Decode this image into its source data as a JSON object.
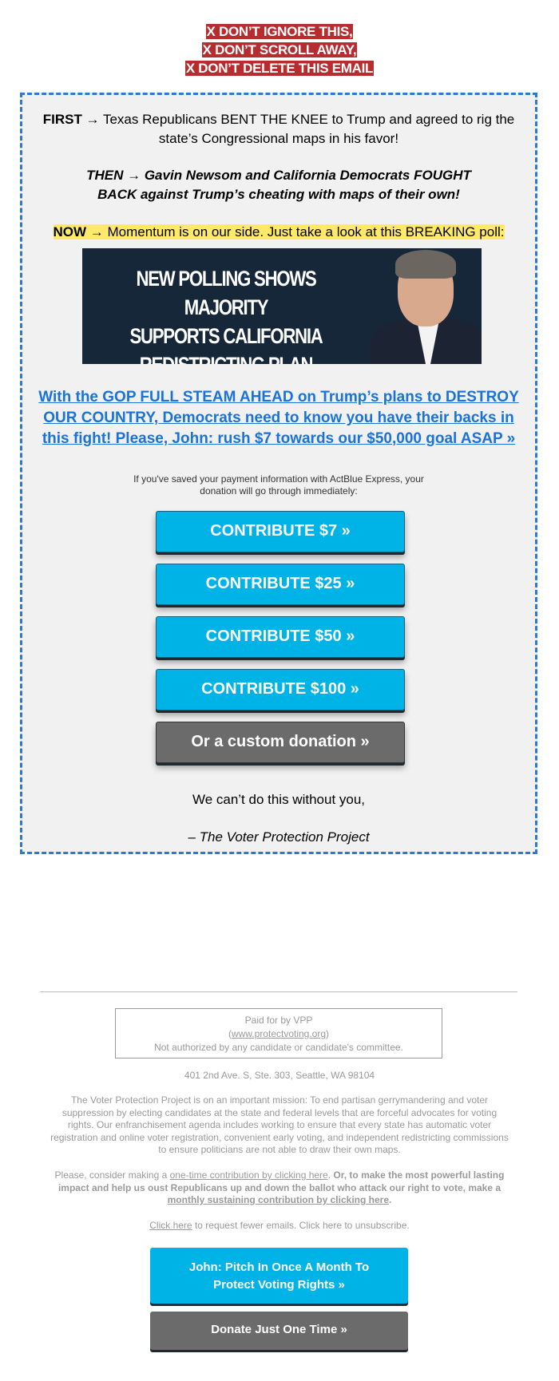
{
  "warning": [
    "X DON’T IGNORE THIS,",
    "X DON’T SCROLL AWAY,",
    "X DON’T DELETE THIS EMAIL"
  ],
  "first": {
    "lead": "FIRST",
    "text": " → Texas Republicans BENT THE KNEE to Trump and agreed to rig the state’s Congressional maps in his favor!"
  },
  "then": {
    "lead": "THEN",
    "text": " → Gavin Newsom and California Democrats FOUGHT BACK against Trump’s cheating with maps of their own!"
  },
  "now": {
    "lead": "NOW",
    "text": " → Momentum is on our side. Just take a look at this BREAKING poll:"
  },
  "banner": {
    "lines": [
      "NEW POLLING SHOWS MAJORITY",
      "SUPPORTS CALIFORNIA",
      "REDISTRICTING PLAN"
    ]
  },
  "ask_link": "With the GOP FULL STEAM AHEAD on Trump’s plans to DESTROY OUR COUNTRY, Democrats need to know you have their backs in this fight! Please, John: rush $7 towards our $50,000 goal ASAP »",
  "express_note": "If you've saved your payment information with ActBlue Express, your donation will go through immediately:",
  "buttons": [
    "CONTRIBUTE $7 »",
    "CONTRIBUTE $25 »",
    "CONTRIBUTE $50 »",
    "CONTRIBUTE $100 »",
    "Or a custom donation »"
  ],
  "closing": "We can’t do this without you,",
  "signature": "– The Voter Protection Project",
  "footer": {
    "paid_for": "Paid for by VPP",
    "site_open": "(",
    "site": "www.protectvoting.org",
    "site_close": ")",
    "not_authorized": "Not authorized by any candidate or candidate's committee.",
    "address": "401 2nd Ave. S, Ste. 303, Seattle, WA 98104",
    "mission": "The Voter Protection Project is on an important mission: To end partisan gerrymandering and voter suppression by electing candidates at the state and federal levels that are forceful advocates for voting rights. Our enfranchisement agenda includes working to ensure that every state has automatic voter registration and online voter registration, convenient early voting, and independent redistricting commissions to ensure politicians are not able to draw their own maps.",
    "please_a": "Please, consider making a ",
    "one_time_link": "one-time contribution by clicking here",
    "please_b": ". ",
    "bold_a": "Or, to make the most powerful lasting impact and help us oust Republicans up and down the ballot who attack our right to vote, make a ",
    "monthly_link": "monthly sustaining contribution by clicking here",
    "bold_b": ".",
    "fewer_link": "Click here",
    "fewer_text": " to request fewer emails. Click here to unsubscribe.",
    "monthly_button": "John: Pitch In Once A Month To Protect Voting Rights »",
    "once_button": "Donate Just One Time »"
  },
  "colors": {
    "warning_bg": "#b72d2f",
    "border": "#2b79d0",
    "link": "#1a73d8",
    "button_blue": "#00b3e6",
    "button_gray": "#6b6b6b"
  }
}
